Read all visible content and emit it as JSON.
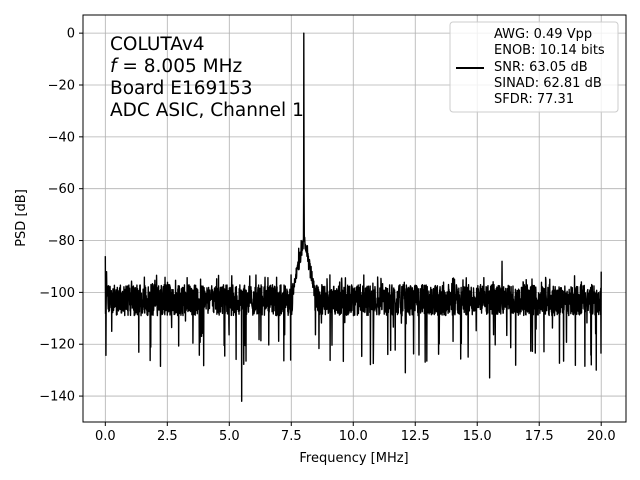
{
  "chart_data": {
    "type": "line",
    "xlabel": "Frequency [MHz]",
    "ylabel": "PSD [dB]",
    "xlim": [
      -0.9,
      21.0
    ],
    "ylim": [
      -150,
      7
    ],
    "xticks": [
      0.0,
      2.5,
      5.0,
      7.5,
      10.0,
      12.5,
      15.0,
      17.5,
      20.0
    ],
    "xtick_labels": [
      "0.0",
      "2.5",
      "5.0",
      "7.5",
      "10.0",
      "12.5",
      "15.0",
      "17.5",
      "20.0"
    ],
    "yticks": [
      0,
      -20,
      -40,
      -60,
      -80,
      -100,
      -120,
      -140
    ],
    "ytick_labels": [
      "0",
      "−20",
      "−40",
      "−60",
      "−80",
      "−100",
      "−120",
      "−140"
    ],
    "grid": true,
    "annotation": {
      "line1": "COLUTAv4",
      "line2_italic": "f",
      "line2_rest": " = 8.005 MHz",
      "line3": "Board E169153",
      "line4": "ADC ASIC, Channel  1"
    },
    "legend": {
      "position": "top-right",
      "lines": [
        "AWG: 0.49 Vpp",
        "ENOB: 10.14 bits",
        "SNR: 63.05 dB",
        "SINAD: 62.81 dB",
        "SFDR: 77.31"
      ]
    },
    "series": [
      {
        "color": "#000000",
        "baseline_db": -103,
        "noise_spread_db": 6,
        "signal_peak": {
          "x": 8.005,
          "y": 0
        },
        "features": [
          {
            "x": 0.0,
            "y": -86
          },
          {
            "x": 0.05,
            "y": -92
          },
          {
            "x": 5.5,
            "y": -142
          },
          {
            "x": 7.8,
            "y": -83
          },
          {
            "x": 7.9,
            "y": -80
          },
          {
            "x": 8.15,
            "y": -82
          },
          {
            "x": 8.3,
            "y": -90
          },
          {
            "x": 12.1,
            "y": -131
          },
          {
            "x": 15.5,
            "y": -133
          },
          {
            "x": 16.0,
            "y": -88
          },
          {
            "x": 19.8,
            "y": -130
          },
          {
            "x": 20.0,
            "y": -92
          }
        ]
      }
    ]
  }
}
